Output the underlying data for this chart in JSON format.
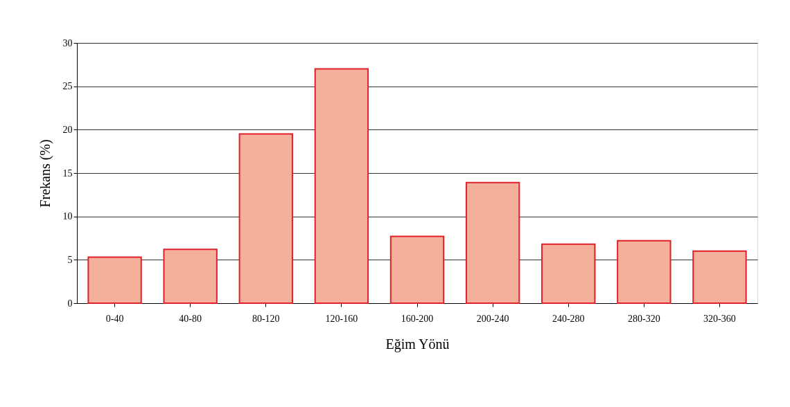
{
  "chart_data": {
    "type": "bar",
    "xlabel": "Eğim Yönü",
    "ylabel": "Frekans (%)",
    "categories": [
      "0-40",
      "40-80",
      "80-120",
      "120-160",
      "160-200",
      "200-240",
      "240-280",
      "280-320",
      "320-360"
    ],
    "values": [
      5.3,
      6.2,
      19.5,
      27.0,
      7.7,
      13.9,
      6.8,
      7.2,
      6.0
    ],
    "color": "#f4b09a",
    "ylim": [
      0,
      30
    ],
    "yticks": [
      0,
      5,
      10,
      15,
      20,
      25,
      30
    ],
    "grid": "y"
  }
}
